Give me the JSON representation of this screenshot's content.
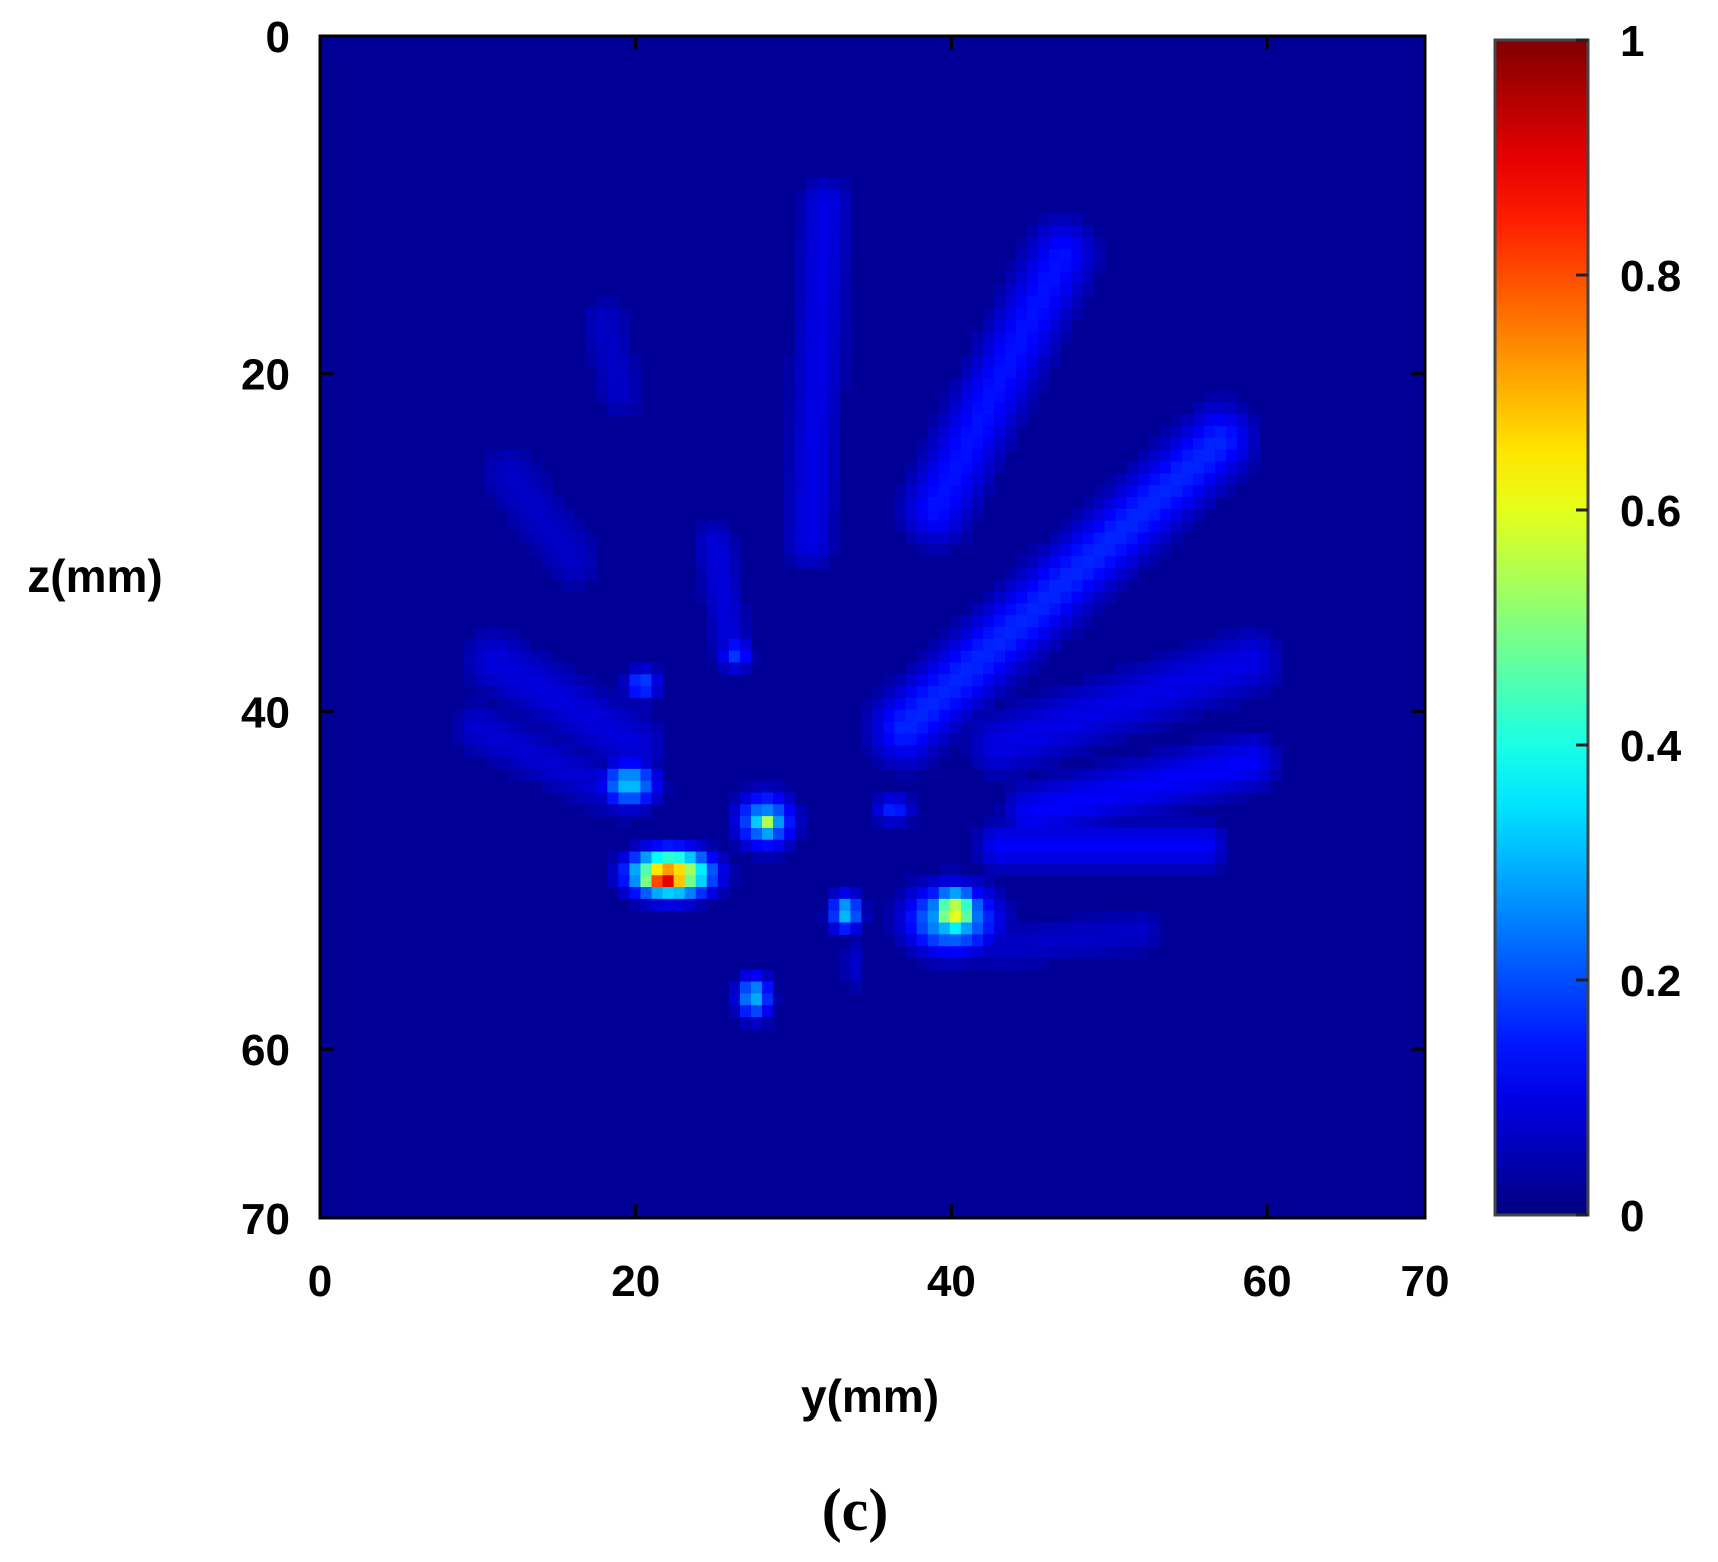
{
  "chart_data": {
    "type": "heatmap",
    "title": "",
    "xlabel": "y(mm)",
    "ylabel": "z(mm)",
    "xlim": [
      0,
      70
    ],
    "ylim": [
      0,
      70
    ],
    "y_axis_reversed": true,
    "x_ticks": [
      "0",
      "20",
      "40",
      "60",
      "70"
    ],
    "y_ticks": [
      "0",
      "20",
      "40",
      "60",
      "70"
    ],
    "colorbar": {
      "colormap": "jet",
      "range": [
        0,
        1
      ],
      "ticks": [
        "0",
        "0.2",
        "0.4",
        "0.6",
        "0.8",
        "1"
      ]
    },
    "background_value": 0,
    "rays": [
      {
        "y1": 32,
        "z1": 10,
        "y2": 31,
        "z2": 30,
        "width": 2.5,
        "value": 0.1
      },
      {
        "y1": 47,
        "z1": 13,
        "y2": 39,
        "z2": 28,
        "width": 3.2,
        "value": 0.14
      },
      {
        "y1": 57,
        "z1": 24,
        "y2": 37,
        "z2": 41,
        "width": 3.2,
        "value": 0.16
      },
      {
        "y1": 59,
        "z1": 37,
        "y2": 43,
        "z2": 42,
        "width": 3.0,
        "value": 0.1
      },
      {
        "y1": 59,
        "z1": 43,
        "y2": 45,
        "z2": 46,
        "width": 2.6,
        "value": 0.12
      },
      {
        "y1": 56,
        "z1": 48,
        "y2": 43,
        "z2": 48,
        "width": 2.2,
        "value": 0.12
      },
      {
        "y1": 52,
        "z1": 53,
        "y2": 43,
        "z2": 54,
        "width": 2.2,
        "value": 0.07
      },
      {
        "y1": 18,
        "z1": 17,
        "y2": 19,
        "z2": 21,
        "width": 2.5,
        "value": 0.07
      },
      {
        "y1": 12,
        "z1": 26,
        "y2": 16,
        "z2": 31,
        "width": 3.0,
        "value": 0.07
      },
      {
        "y1": 11,
        "z1": 37,
        "y2": 20,
        "z2": 42,
        "width": 3.0,
        "value": 0.09
      },
      {
        "y1": 10,
        "z1": 41,
        "y2": 19,
        "z2": 45,
        "width": 2.5,
        "value": 0.08
      },
      {
        "y1": 25,
        "z1": 30,
        "y2": 26,
        "z2": 36,
        "width": 2.0,
        "value": 0.09
      }
    ],
    "blobs": [
      {
        "y": 21.9,
        "z": 49.8,
        "ry": 1.6,
        "rz": 0.8,
        "value": 1.0
      },
      {
        "y": 22.2,
        "z": 49.6,
        "ry": 2.4,
        "rz": 1.3,
        "value": 0.72
      },
      {
        "y": 40.2,
        "z": 51.9,
        "ry": 1.5,
        "rz": 1.3,
        "value": 0.62
      },
      {
        "y": 40.0,
        "z": 52.3,
        "ry": 2.8,
        "rz": 2.0,
        "value": 0.32
      },
      {
        "y": 28.3,
        "z": 46.6,
        "ry": 0.9,
        "rz": 0.8,
        "value": 0.55
      },
      {
        "y": 28.2,
        "z": 46.5,
        "ry": 1.8,
        "rz": 1.6,
        "value": 0.3
      },
      {
        "y": 19.6,
        "z": 44.3,
        "ry": 1.7,
        "rz": 1.3,
        "value": 0.32
      },
      {
        "y": 33.3,
        "z": 51.9,
        "ry": 1.0,
        "rz": 1.1,
        "value": 0.32
      },
      {
        "y": 27.5,
        "z": 56.9,
        "ry": 1.1,
        "rz": 1.3,
        "value": 0.3
      },
      {
        "y": 20.4,
        "z": 38.4,
        "ry": 1.1,
        "rz": 1.0,
        "value": 0.2
      },
      {
        "y": 26.3,
        "z": 36.6,
        "ry": 1.1,
        "rz": 1.0,
        "value": 0.18
      },
      {
        "y": 36.3,
        "z": 45.8,
        "ry": 1.3,
        "rz": 0.9,
        "value": 0.16
      },
      {
        "y": 33.8,
        "z": 55.0,
        "ry": 0.8,
        "rz": 1.8,
        "value": 0.08
      }
    ]
  }
}
